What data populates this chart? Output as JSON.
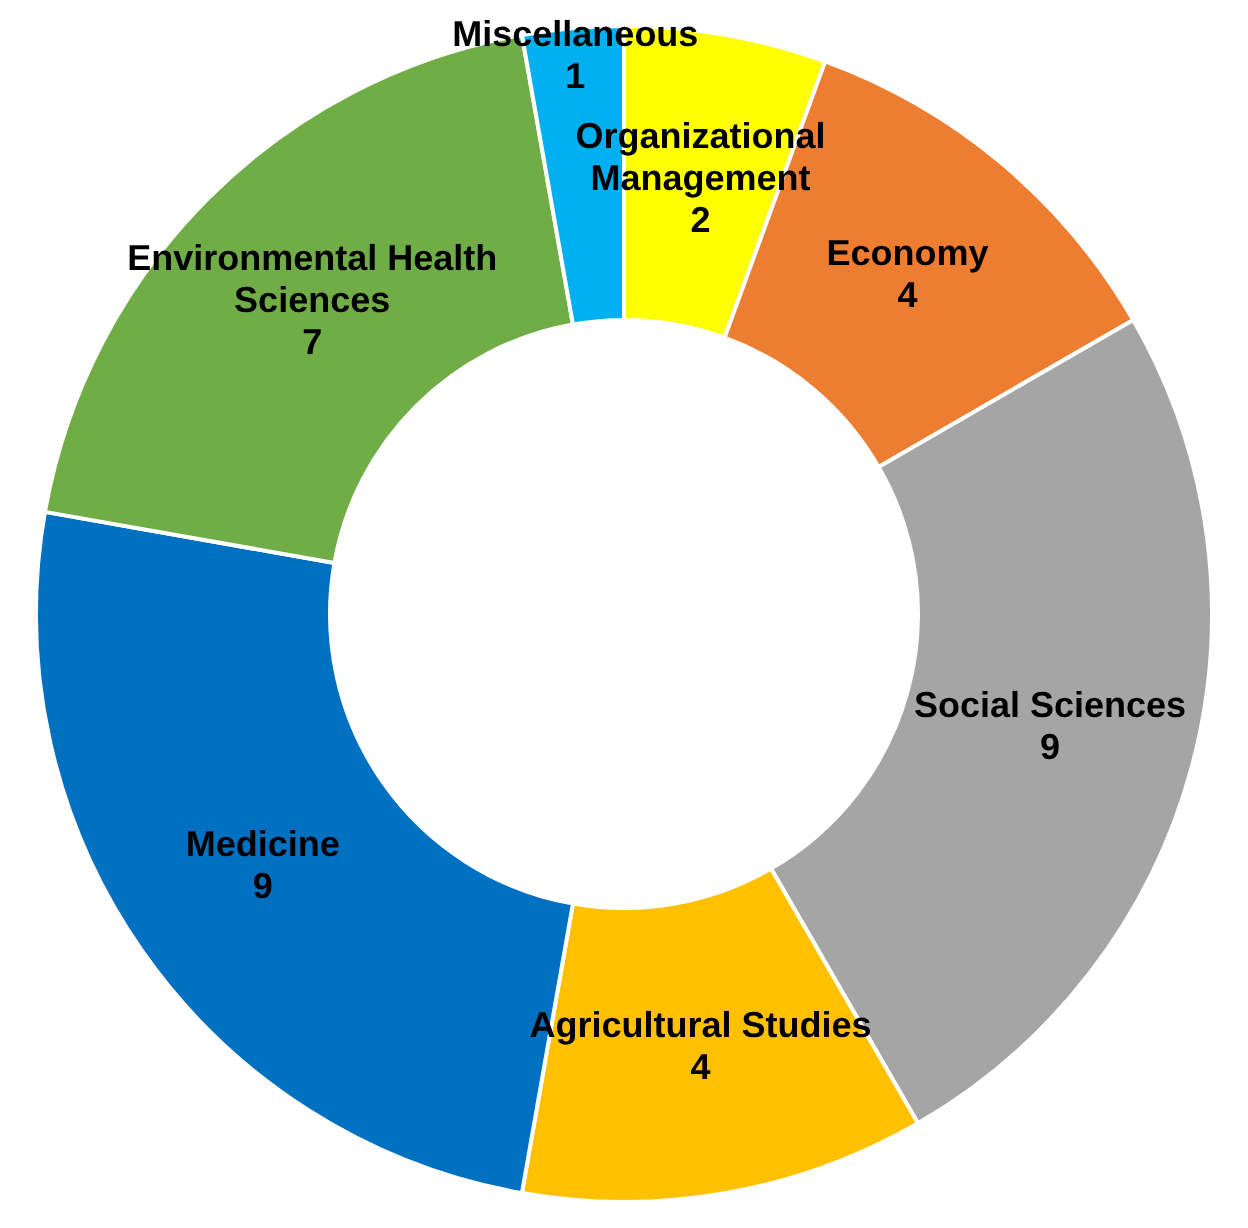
{
  "chart_data": {
    "type": "donut",
    "categories": [
      "Organizational Management",
      "Economy",
      "Social Sciences",
      "Agricultural Studies",
      "Medicine",
      "Environmental Health Sciences",
      "Miscellaneous"
    ],
    "values": [
      2,
      4,
      9,
      4,
      9,
      7,
      1
    ],
    "colors": [
      "#ffff00",
      "#ed7d31",
      "#a5a5a5",
      "#ffc000",
      "#0070c0",
      "#70ad47",
      "#00b0f0"
    ],
    "data_labels": true,
    "legend": false
  }
}
